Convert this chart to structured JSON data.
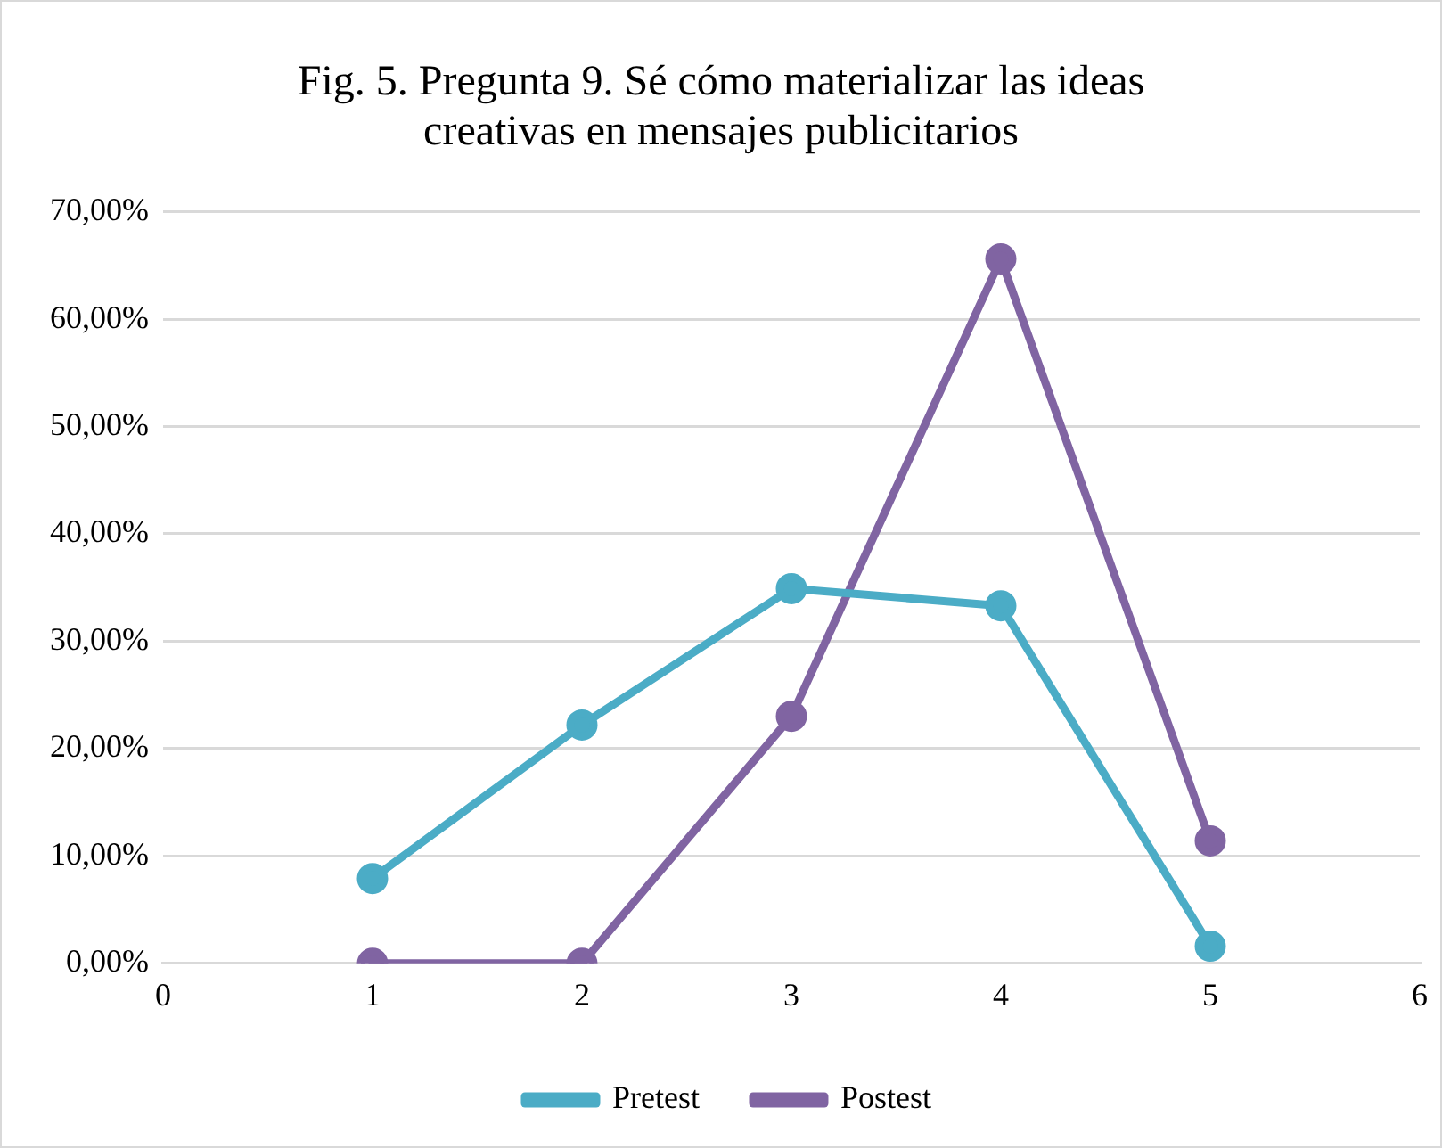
{
  "chart_data": {
    "type": "line",
    "title": "Fig. 5. Pregunta 9. Sé cómo materializar las ideas creativas en mensajes publicitarios",
    "x": [
      1,
      2,
      3,
      4,
      5
    ],
    "series": [
      {
        "name": "Pretest",
        "color": "#4bacc6",
        "values": [
          7.9,
          22.2,
          34.9,
          33.3,
          1.6
        ]
      },
      {
        "name": "Postest",
        "color": "#8064a2",
        "values": [
          0,
          0,
          23.0,
          65.6,
          11.4
        ]
      }
    ],
    "xlim": [
      0,
      6
    ],
    "xticks": [
      0,
      1,
      2,
      3,
      4,
      5,
      6
    ],
    "ylim": [
      0,
      70
    ],
    "yticks": [
      {
        "value": 0,
        "label": "0,00%"
      },
      {
        "value": 10,
        "label": "10,00%"
      },
      {
        "value": 20,
        "label": "20,00%"
      },
      {
        "value": 30,
        "label": "30,00%"
      },
      {
        "value": 40,
        "label": "40,00%"
      },
      {
        "value": 50,
        "label": "50,00%"
      },
      {
        "value": 60,
        "label": "60,00%"
      },
      {
        "value": 70,
        "label": "70,00%"
      }
    ],
    "grid": "y",
    "legend": "bottom",
    "marker": "circle",
    "line_style": "solid"
  }
}
